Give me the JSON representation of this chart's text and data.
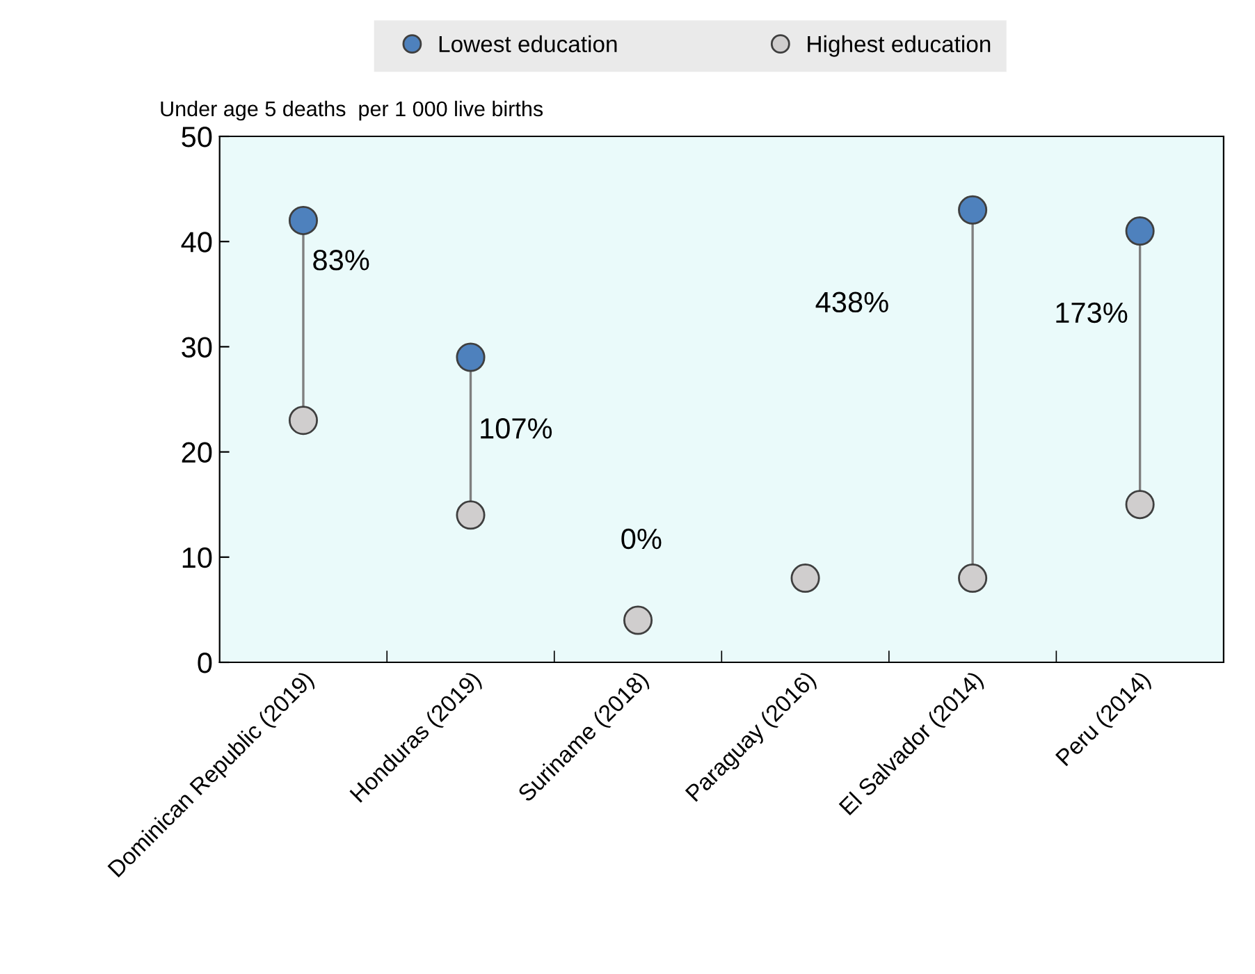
{
  "chart_data": {
    "type": "scatter",
    "ylabel": "Under age 5 deaths  per 1 000 live births",
    "categories": [
      "Dominican Republic (2019)",
      "Honduras (2019)",
      "Suriname (2018)",
      "Paraguay (2016)",
      "El Salvador (2014)",
      "Peru (2014)"
    ],
    "series": [
      {
        "name": "Lowest education",
        "color": "#4e81bd",
        "values": [
          42,
          29,
          null,
          null,
          43,
          41
        ]
      },
      {
        "name": "Highest education",
        "color": "#d0cece",
        "values": [
          23,
          14,
          4,
          8,
          8,
          15
        ]
      }
    ],
    "annotations": [
      "83%",
      "107%",
      "0%",
      "438%",
      "173%"
    ],
    "ylim": [
      0,
      50
    ],
    "yticks": [
      0,
      10,
      20,
      30,
      40,
      50
    ],
    "marker": "circle",
    "legend": "top"
  }
}
